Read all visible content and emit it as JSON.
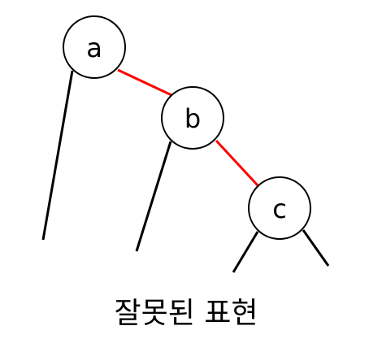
{
  "diagram": {
    "nodes": {
      "a": "a",
      "b": "b",
      "c": "c"
    },
    "caption": "잘못된 표현",
    "colors": {
      "highlight_edge": "#ff0000",
      "edge": "#000000",
      "node_fill": "#ffffff",
      "node_stroke": "#000000"
    }
  }
}
